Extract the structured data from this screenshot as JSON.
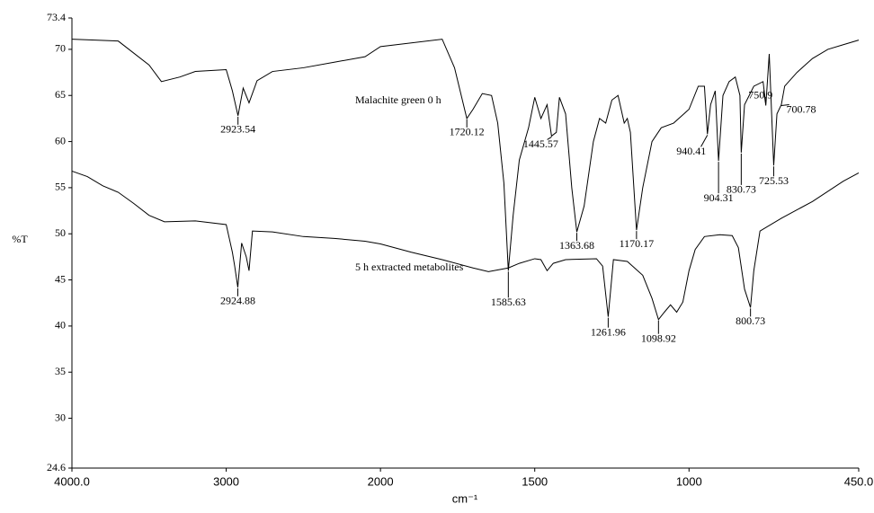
{
  "chart_data": {
    "type": "line",
    "x_label": "cm⁻¹",
    "y_label": "%T",
    "xlim": [
      4000,
      450
    ],
    "xscale": "split",
    "xsplit": 2000,
    "xticks": [
      {
        "value": 4000,
        "label": "4000.0"
      },
      3000,
      2000,
      1500,
      1000,
      {
        "value": 450,
        "label": "450.0"
      }
    ],
    "ylim": [
      24.6,
      73.4
    ],
    "yticks": [
      24.6,
      30,
      35,
      40,
      45,
      50,
      55,
      60,
      65,
      70,
      73.4
    ],
    "grid": false,
    "series": [
      {
        "name": "Malachite green 0 h",
        "color": "#000000",
        "x": [
          4000,
          3700,
          3500,
          3420,
          3300,
          3200,
          3000,
          2960,
          2923.54,
          2890,
          2852,
          2800,
          2700,
          2500,
          2300,
          2100,
          2000,
          1800,
          1760,
          1720.12,
          1700,
          1670,
          1640,
          1620,
          1600,
          1585.63,
          1570,
          1550,
          1520,
          1500,
          1480,
          1460,
          1445.57,
          1430,
          1420,
          1400,
          1380,
          1363.68,
          1340,
          1310,
          1290,
          1270,
          1250,
          1230,
          1210,
          1200,
          1190,
          1170.17,
          1150,
          1120,
          1090,
          1050,
          1000,
          970,
          950,
          940.41,
          930,
          915,
          904.31,
          890,
          870,
          850,
          835,
          830.73,
          820,
          790,
          760,
          750.9,
          740,
          725.53,
          715,
          700.78,
          690,
          650,
          600,
          550,
          500,
          450
        ],
        "values": [
          71.1,
          70.9,
          68.3,
          66.5,
          67.0,
          67.6,
          67.8,
          65.5,
          62.8,
          65.8,
          64.2,
          66.6,
          67.6,
          68.0,
          68.6,
          69.2,
          70.3,
          71.1,
          68.0,
          62.5,
          63.5,
          65.2,
          65.0,
          62.0,
          55.5,
          46.0,
          52.0,
          58.0,
          61.5,
          64.8,
          62.5,
          64.0,
          60.6,
          61.0,
          64.8,
          63.0,
          55.0,
          50.2,
          53.0,
          60.0,
          62.5,
          62.0,
          64.5,
          65.0,
          62.0,
          62.5,
          61.0,
          50.4,
          55.0,
          60.0,
          61.5,
          62.0,
          63.5,
          66.0,
          66.0,
          60.8,
          64.0,
          65.5,
          57.9,
          65.0,
          66.5,
          67.0,
          65.0,
          58.8,
          64.0,
          66.0,
          66.5,
          64.0,
          69.5,
          57.4,
          63.0,
          64.0,
          66.0,
          67.5,
          69.0,
          70.0,
          70.5,
          71.0
        ],
        "peaks": [
          2923.54,
          1720.12,
          1585.63,
          1445.57,
          1363.68,
          1170.17,
          940.41,
          904.31,
          830.73,
          750.9,
          725.53,
          700.78
        ]
      },
      {
        "name": "5 h extracted metabolites",
        "color": "#000000",
        "x": [
          4000,
          3900,
          3800,
          3700,
          3600,
          3500,
          3400,
          3200,
          3000,
          2960,
          2945,
          2924.88,
          2900,
          2870,
          2852,
          2830,
          2700,
          2500,
          2300,
          2100,
          2000,
          1900,
          1800,
          1700,
          1650,
          1585.63,
          1550,
          1500,
          1480,
          1460,
          1440,
          1400,
          1300,
          1280,
          1261.96,
          1245,
          1200,
          1150,
          1120,
          1098.92,
          1080,
          1060,
          1040,
          1020,
          1000,
          980,
          950,
          900,
          860,
          840,
          820,
          800.73,
          790,
          770,
          700,
          600,
          500,
          450
        ],
        "values": [
          56.8,
          56.2,
          55.2,
          54.5,
          53.3,
          52.0,
          51.3,
          51.4,
          51.0,
          48.0,
          46.5,
          44.2,
          49.0,
          47.5,
          46.0,
          50.3,
          50.2,
          49.7,
          49.5,
          49.2,
          48.9,
          48.0,
          47.2,
          46.3,
          45.9,
          46.3,
          46.8,
          47.3,
          47.2,
          46.0,
          46.8,
          47.2,
          47.3,
          46.5,
          41.0,
          47.2,
          47.0,
          45.5,
          43.0,
          40.7,
          41.5,
          42.3,
          41.5,
          42.6,
          46.0,
          48.3,
          49.7,
          49.9,
          49.8,
          48.5,
          44.0,
          42.0,
          46.0,
          50.3,
          51.7,
          53.5,
          55.7,
          56.6
        ],
        "peaks": [
          2924.88,
          1261.96,
          1098.92,
          800.73
        ]
      }
    ]
  }
}
